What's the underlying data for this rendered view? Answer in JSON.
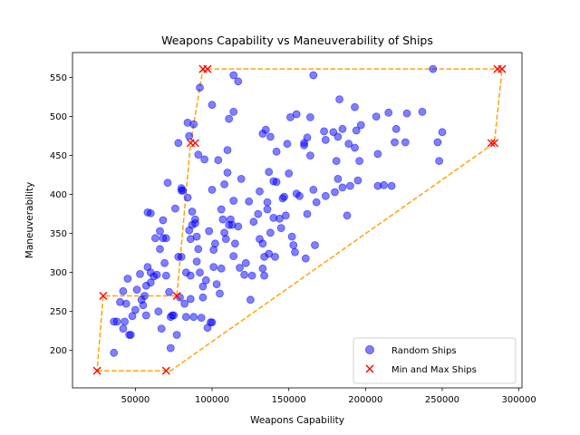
{
  "chart_data": {
    "type": "scatter",
    "title": "Weapons Capability vs Maneuverability of Ships",
    "xlabel": "Weapons Capability",
    "ylabel": "Maneuverability",
    "xlim": [
      9000,
      302000
    ],
    "ylim": [
      152000,
      582000
    ],
    "ylim_note": "unused",
    "x_ticks": [
      50000,
      100000,
      150000,
      200000,
      250000,
      300000
    ],
    "y_ticks": [
      200,
      250,
      300,
      350,
      400,
      450,
      500,
      550
    ],
    "grid": false,
    "legend_position": "lower right",
    "colors": {
      "random": "#0000ff",
      "minmax": "#ff0000",
      "hull": "#ffa500"
    },
    "series": [
      {
        "name": "Random Ships",
        "marker": "circle",
        "points": [
          [
            36000,
            197
          ],
          [
            36000,
            237
          ],
          [
            38000,
            237
          ],
          [
            40000,
            262
          ],
          [
            42000,
            228
          ],
          [
            42000,
            276
          ],
          [
            43000,
            237
          ],
          [
            44000,
            260
          ],
          [
            45000,
            292
          ],
          [
            46000,
            220
          ],
          [
            47000,
            220
          ],
          [
            48000,
            244
          ],
          [
            50000,
            252
          ],
          [
            51000,
            278
          ],
          [
            53000,
            298
          ],
          [
            54000,
            265
          ],
          [
            55000,
            258
          ],
          [
            56000,
            270
          ],
          [
            57000,
            245
          ],
          [
            57000,
            283
          ],
          [
            58000,
            307
          ],
          [
            58000,
            377
          ],
          [
            60000,
            376
          ],
          [
            60000,
            287
          ],
          [
            60000,
            300
          ],
          [
            62000,
            295
          ],
          [
            63000,
            344
          ],
          [
            64000,
            297
          ],
          [
            65000,
            250
          ],
          [
            66000,
            353
          ],
          [
            66000,
            330
          ],
          [
            67000,
            228
          ],
          [
            68000,
            344
          ],
          [
            68000,
            367
          ],
          [
            69000,
            312
          ],
          [
            70000,
            344
          ],
          [
            70000,
            296
          ],
          [
            71000,
            415
          ],
          [
            72000,
            275
          ],
          [
            73000,
            243
          ],
          [
            73000,
            203
          ],
          [
            74000,
            245
          ],
          [
            75000,
            245
          ],
          [
            76000,
            382
          ],
          [
            77000,
            220
          ],
          [
            78000,
            466
          ],
          [
            78000,
            320
          ],
          [
            79000,
            268
          ],
          [
            80000,
            405
          ],
          [
            80000,
            320
          ],
          [
            80000,
            408
          ],
          [
            81000,
            405
          ],
          [
            82000,
            260
          ],
          [
            83000,
            300
          ],
          [
            83000,
            243
          ],
          [
            84000,
            396
          ],
          [
            84000,
            492
          ],
          [
            85000,
            354
          ],
          [
            85000,
            475
          ],
          [
            86000,
            266
          ],
          [
            86000,
            343
          ],
          [
            86000,
            296
          ],
          [
            87000,
            378
          ],
          [
            87000,
            361
          ],
          [
            88000,
            490
          ],
          [
            88000,
            243
          ],
          [
            89000,
            363
          ],
          [
            89000,
            368
          ],
          [
            90000,
            346
          ],
          [
            90000,
            314
          ],
          [
            91000,
            451
          ],
          [
            91000,
            330
          ],
          [
            92000,
            300
          ],
          [
            92000,
            537
          ],
          [
            93000,
            242
          ],
          [
            94000,
            282
          ],
          [
            94000,
            268
          ],
          [
            95000,
            445
          ],
          [
            96000,
            290
          ],
          [
            97000,
            229
          ],
          [
            98000,
            353
          ],
          [
            99000,
            236
          ],
          [
            100000,
            236
          ],
          [
            100000,
            406
          ],
          [
            100000,
            515
          ],
          [
            101000,
            307
          ],
          [
            101000,
            329
          ],
          [
            102000,
            337
          ],
          [
            103000,
            285
          ],
          [
            104000,
            444
          ],
          [
            105000,
            273
          ],
          [
            106000,
            305
          ],
          [
            106000,
            381
          ],
          [
            107000,
            368
          ],
          [
            108000,
            351
          ],
          [
            108000,
            413
          ],
          [
            109000,
            343
          ],
          [
            110000,
            457
          ],
          [
            110000,
            428
          ],
          [
            111000,
            497
          ],
          [
            111000,
            361
          ],
          [
            112000,
            368
          ],
          [
            113000,
            361
          ],
          [
            114000,
            321
          ],
          [
            114000,
            392
          ],
          [
            114000,
            506
          ],
          [
            114000,
            553
          ],
          [
            115000,
            337
          ],
          [
            117000,
            545
          ],
          [
            117000,
            359
          ],
          [
            118000,
            306
          ],
          [
            119000,
            420
          ],
          [
            121000,
            297
          ],
          [
            122000,
            312
          ],
          [
            124000,
            391
          ],
          [
            125000,
            265
          ],
          [
            126000,
            296
          ],
          [
            127000,
            365
          ],
          [
            130000,
            375
          ],
          [
            131000,
            343
          ],
          [
            131000,
            404
          ],
          [
            133000,
            337
          ],
          [
            133000,
            478
          ],
          [
            133000,
            305
          ],
          [
            134000,
            296
          ],
          [
            134000,
            320
          ],
          [
            135000,
            483
          ],
          [
            136000,
            390
          ],
          [
            136000,
            381
          ],
          [
            137000,
            324
          ],
          [
            137000,
            429
          ],
          [
            138000,
            474
          ],
          [
            138000,
            351
          ],
          [
            140000,
            370
          ],
          [
            140000,
            417
          ],
          [
            141000,
            320
          ],
          [
            142000,
            455
          ],
          [
            142000,
            416
          ],
          [
            144000,
            369
          ],
          [
            145000,
            357
          ],
          [
            146000,
            395
          ],
          [
            147000,
            397
          ],
          [
            148000,
            373
          ],
          [
            149000,
            465
          ],
          [
            150000,
            427
          ],
          [
            151000,
            499
          ],
          [
            152000,
            346
          ],
          [
            153000,
            335
          ],
          [
            154000,
            326
          ],
          [
            155000,
            401
          ],
          [
            155000,
            503
          ],
          [
            157000,
            398
          ],
          [
            160000,
            463
          ],
          [
            160000,
            466
          ],
          [
            161000,
            318
          ],
          [
            162000,
            473
          ],
          [
            162000,
            375
          ],
          [
            164000,
            450
          ],
          [
            164000,
            499
          ],
          [
            166000,
            553
          ],
          [
            166000,
            406
          ],
          [
            167000,
            335
          ],
          [
            168000,
            390
          ],
          [
            173000,
            481
          ],
          [
            174000,
            470
          ],
          [
            174000,
            398
          ],
          [
            179000,
            480
          ],
          [
            180000,
            403
          ],
          [
            181000,
            443
          ],
          [
            182000,
            474
          ],
          [
            182000,
            420
          ],
          [
            183000,
            522
          ],
          [
            185000,
            409
          ],
          [
            185000,
            484
          ],
          [
            188000,
            373
          ],
          [
            189000,
            465
          ],
          [
            190000,
            411
          ],
          [
            193000,
            460
          ],
          [
            193000,
            512
          ],
          [
            194000,
            482
          ],
          [
            195000,
            418
          ],
          [
            196000,
            443
          ],
          [
            197000,
            489
          ],
          [
            207000,
            500
          ],
          [
            208000,
            411
          ],
          [
            208000,
            452
          ],
          [
            212000,
            412
          ],
          [
            215000,
            505
          ],
          [
            217000,
            411
          ],
          [
            219000,
            467
          ],
          [
            220000,
            484
          ],
          [
            226000,
            467
          ],
          [
            227000,
            504
          ],
          [
            237000,
            506
          ],
          [
            244000,
            561
          ],
          [
            247000,
            467
          ],
          [
            248000,
            443
          ],
          [
            250000,
            480
          ]
        ]
      },
      {
        "name": "Min and Max Ships",
        "marker": "x",
        "points": [
          [
            25000,
            174
          ],
          [
            29000,
            270
          ],
          [
            70000,
            174
          ],
          [
            77000,
            270
          ],
          [
            86000,
            466
          ],
          [
            89000,
            466
          ],
          [
            94000,
            561
          ],
          [
            97000,
            561
          ],
          [
            282000,
            466
          ],
          [
            284000,
            466
          ],
          [
            286000,
            561
          ],
          [
            289000,
            561
          ]
        ]
      }
    ],
    "hull_path": [
      [
        25000,
        174
      ],
      [
        70000,
        174
      ],
      [
        73000,
        174
      ],
      [
        284000,
        466
      ],
      [
        289000,
        561
      ],
      [
        94000,
        561
      ],
      [
        86000,
        466
      ],
      [
        77000,
        270
      ],
      [
        29000,
        270
      ],
      [
        25000,
        174
      ]
    ]
  }
}
